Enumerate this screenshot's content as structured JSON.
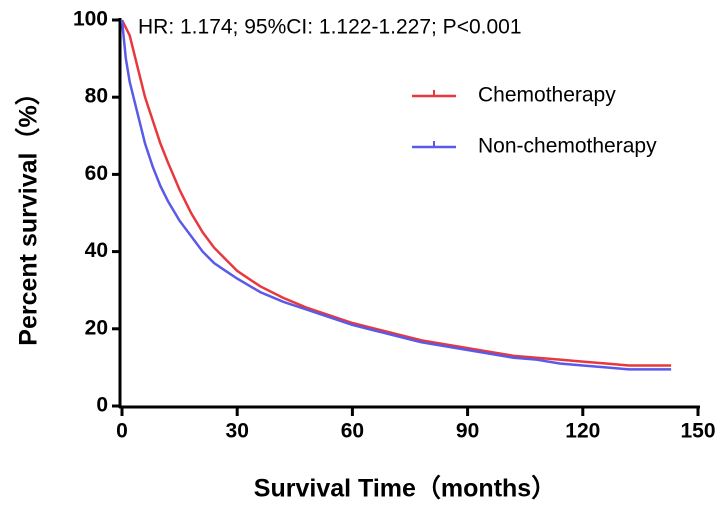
{
  "chart_data": {
    "type": "line",
    "annotation": "HR: 1.174; 95%CI: 1.122-1.227; P<0.001",
    "x_label": "Survival Time（months）",
    "y_label": "Percent survival（%）",
    "x": [
      0,
      1,
      2,
      4,
      6,
      8,
      10,
      12,
      15,
      18,
      21,
      24,
      27,
      30,
      36,
      42,
      48,
      54,
      60,
      66,
      72,
      78,
      84,
      90,
      96,
      102,
      108,
      114,
      120,
      126,
      132,
      138,
      143
    ],
    "series": [
      {
        "name": "Chemotherapy",
        "color": "#e8383d",
        "values": [
          100,
          98,
          96,
          88,
          80,
          74,
          68,
          63,
          56,
          50,
          45,
          41,
          38,
          35,
          31,
          28,
          25.5,
          23.5,
          21.5,
          20,
          18.5,
          17,
          16,
          15,
          14,
          13,
          12.5,
          12,
          11.5,
          11,
          10.5,
          10.5,
          10.5
        ]
      },
      {
        "name": "Non-chemotherapy",
        "color": "#5a5ae8",
        "values": [
          100,
          90,
          84,
          76,
          68,
          62,
          57,
          53,
          48,
          44,
          40,
          37,
          35,
          33,
          29.5,
          27,
          25,
          23,
          21,
          19.5,
          18,
          16.5,
          15.5,
          14.5,
          13.5,
          12.5,
          12,
          11,
          10.5,
          10,
          9.5,
          9.5,
          9.5
        ]
      }
    ],
    "xlim": [
      0,
      150
    ],
    "xticks": [
      0,
      30,
      60,
      90,
      120,
      150
    ],
    "ylim": [
      0,
      100
    ],
    "yticks": [
      0,
      20,
      40,
      60,
      80,
      100
    ],
    "grid": false,
    "legend": "upper right"
  }
}
